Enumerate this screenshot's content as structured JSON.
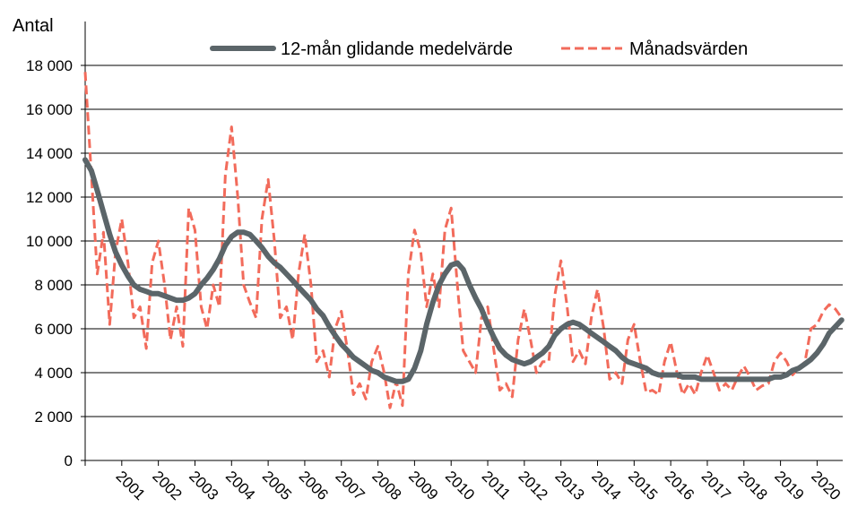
{
  "chart_data": {
    "type": "line",
    "y_axis_label": "Antal",
    "x": [
      2000,
      2000.17,
      2000.33,
      2000.5,
      2000.67,
      2000.83,
      2001,
      2001.17,
      2001.33,
      2001.5,
      2001.67,
      2001.83,
      2002,
      2002.17,
      2002.33,
      2002.5,
      2002.67,
      2002.83,
      2003,
      2003.17,
      2003.33,
      2003.5,
      2003.67,
      2003.83,
      2004,
      2004.17,
      2004.33,
      2004.5,
      2004.67,
      2004.83,
      2005,
      2005.17,
      2005.33,
      2005.5,
      2005.67,
      2005.83,
      2006,
      2006.17,
      2006.33,
      2006.5,
      2006.67,
      2006.83,
      2007,
      2007.17,
      2007.33,
      2007.5,
      2007.67,
      2007.83,
      2008,
      2008.17,
      2008.33,
      2008.5,
      2008.67,
      2008.83,
      2009,
      2009.17,
      2009.33,
      2009.5,
      2009.67,
      2009.83,
      2010,
      2010.17,
      2010.33,
      2010.5,
      2010.67,
      2010.83,
      2011,
      2011.17,
      2011.33,
      2011.5,
      2011.67,
      2011.83,
      2012,
      2012.17,
      2012.33,
      2012.5,
      2012.67,
      2012.83,
      2013,
      2013.17,
      2013.33,
      2013.5,
      2013.67,
      2013.83,
      2014,
      2014.17,
      2014.33,
      2014.5,
      2014.67,
      2014.83,
      2015,
      2015.17,
      2015.33,
      2015.5,
      2015.67,
      2015.83,
      2016,
      2016.17,
      2016.33,
      2016.5,
      2016.67,
      2016.83,
      2017,
      2017.17,
      2017.33,
      2017.5,
      2017.67,
      2017.83,
      2018,
      2018.17,
      2018.33,
      2018.5,
      2018.67,
      2018.83,
      2019,
      2019.17,
      2019.33,
      2019.5,
      2019.67,
      2019.83,
      2020,
      2020.17,
      2020.33,
      2020.5,
      2020.67
    ],
    "series": [
      {
        "name": "12-mån glidande medelvärde",
        "color": "#5b6569",
        "style": "solid",
        "values": [
          13700,
          13200,
          12300,
          11300,
          10300,
          9500,
          8900,
          8400,
          8000,
          7800,
          7700,
          7600,
          7600,
          7500,
          7400,
          7300,
          7300,
          7400,
          7600,
          8000,
          8300,
          8700,
          9200,
          9800,
          10200,
          10400,
          10400,
          10300,
          10000,
          9700,
          9300,
          9000,
          8800,
          8500,
          8200,
          7900,
          7600,
          7300,
          6900,
          6600,
          6100,
          5700,
          5300,
          5000,
          4700,
          4500,
          4300,
          4100,
          4000,
          3800,
          3700,
          3600,
          3600,
          3700,
          4200,
          5000,
          6200,
          7200,
          8000,
          8500,
          8900,
          9000,
          8700,
          8000,
          7400,
          6900,
          6200,
          5600,
          5100,
          4800,
          4600,
          4500,
          4400,
          4500,
          4700,
          4900,
          5200,
          5700,
          6000,
          6200,
          6300,
          6200,
          6000,
          5800,
          5600,
          5400,
          5200,
          5000,
          4700,
          4500,
          4400,
          4300,
          4200,
          4000,
          3900,
          3900,
          3900,
          3900,
          3800,
          3800,
          3800,
          3700,
          3700,
          3700,
          3700,
          3700,
          3700,
          3700,
          3700,
          3700,
          3700,
          3700,
          3700,
          3800,
          3800,
          3900,
          4100,
          4200,
          4400,
          4600,
          4900,
          5300,
          5800,
          6100,
          6400
        ]
      },
      {
        "name": "Månadsvärden",
        "color": "#f26b5b",
        "style": "dashed",
        "values": [
          17700,
          13000,
          8500,
          10400,
          6200,
          9500,
          11000,
          9000,
          6500,
          7000,
          5100,
          9000,
          10000,
          8000,
          5500,
          7000,
          5200,
          11500,
          10500,
          7000,
          6000,
          8000,
          7000,
          13000,
          15200,
          12000,
          8000,
          7200,
          6500,
          11000,
          12800,
          10000,
          6500,
          7000,
          5500,
          8500,
          10300,
          8000,
          4500,
          5000,
          3800,
          6000,
          6800,
          5000,
          3000,
          3500,
          2800,
          4500,
          5200,
          4000,
          2400,
          3600,
          2500,
          8500,
          10500,
          9500,
          7000,
          8500,
          7000,
          10500,
          11500,
          8000,
          5000,
          4500,
          4000,
          6500,
          7000,
          5000,
          3200,
          3500,
          2900,
          5500,
          6900,
          5500,
          4000,
          4500,
          4500,
          7500,
          9100,
          7000,
          4500,
          5000,
          4400,
          6500,
          7800,
          6000,
          3700,
          4000,
          3500,
          5500,
          6200,
          4500,
          3100,
          3200,
          3000,
          4500,
          5400,
          4000,
          3000,
          3500,
          3000,
          4000,
          4800,
          4000,
          3200,
          3500,
          3200,
          3800,
          4300,
          3800,
          3200,
          3400,
          3500,
          4500,
          4900,
          4500,
          3900,
          4200,
          4500,
          6000,
          6200,
          6800,
          7100,
          6900,
          6500
        ]
      }
    ],
    "xlim": [
      2000,
      2020.7
    ],
    "xticks": [
      {
        "value": 2001,
        "label": "2001"
      },
      {
        "value": 2002,
        "label": "2002"
      },
      {
        "value": 2003,
        "label": "2003"
      },
      {
        "value": 2004,
        "label": "2004"
      },
      {
        "value": 2005,
        "label": "2005"
      },
      {
        "value": 2006,
        "label": "2006"
      },
      {
        "value": 2007,
        "label": "2007"
      },
      {
        "value": 2008,
        "label": "2008"
      },
      {
        "value": 2009,
        "label": "2009"
      },
      {
        "value": 2010,
        "label": "2010"
      },
      {
        "value": 2011,
        "label": "2011"
      },
      {
        "value": 2012,
        "label": "2012"
      },
      {
        "value": 2013,
        "label": "2013"
      },
      {
        "value": 2014,
        "label": "2014"
      },
      {
        "value": 2015,
        "label": "2015"
      },
      {
        "value": 2016,
        "label": "2016"
      },
      {
        "value": 2017,
        "label": "2017"
      },
      {
        "value": 2018,
        "label": "2018"
      },
      {
        "value": 2019,
        "label": "2019"
      },
      {
        "value": 2020,
        "label": "2020"
      }
    ],
    "ylim": [
      0,
      20000
    ],
    "yticks": [
      0,
      {
        "value": 2000,
        "label": "2 000"
      },
      {
        "value": 4000,
        "label": "4 000"
      },
      {
        "value": 6000,
        "label": "6 000"
      },
      {
        "value": 8000,
        "label": "8 000"
      },
      {
        "value": 10000,
        "label": "10 000"
      },
      {
        "value": 12000,
        "label": "12 000"
      },
      {
        "value": 14000,
        "label": "14 000"
      },
      {
        "value": 16000,
        "label": "16 000"
      },
      {
        "value": 18000,
        "label": "18 000"
      }
    ],
    "grid": true,
    "legend": "top"
  }
}
